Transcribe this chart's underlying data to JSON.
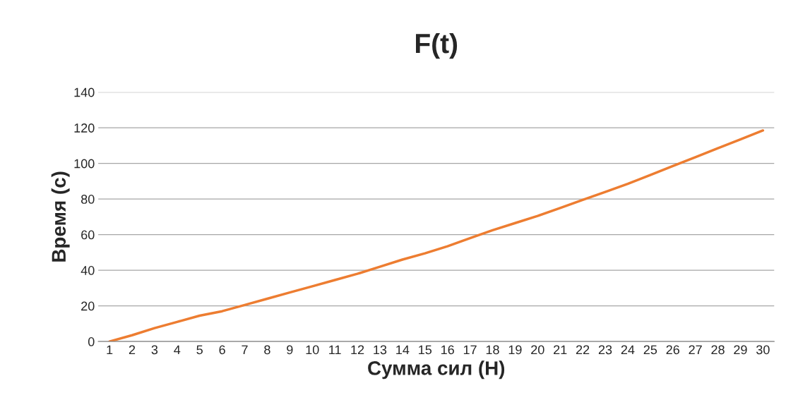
{
  "chart_data": {
    "type": "line",
    "title": "F(t)",
    "xlabel": "Сумма сил (Н)",
    "ylabel": "Время (с)",
    "categories": [
      "1",
      "2",
      "3",
      "4",
      "5",
      "6",
      "7",
      "8",
      "9",
      "10",
      "11",
      "12",
      "13",
      "14",
      "15",
      "16",
      "17",
      "18",
      "19",
      "20",
      "21",
      "22",
      "23",
      "24",
      "25",
      "26",
      "27",
      "28",
      "29",
      "30"
    ],
    "series": [
      {
        "color": "#ed7d31",
        "values": [
          0,
          3.5,
          7.5,
          11,
          14.5,
          17,
          20.5,
          24,
          27.5,
          31,
          34.5,
          38,
          42,
          46,
          49.5,
          53.5,
          58,
          62.5,
          66.5,
          70.5,
          75,
          79.5,
          84,
          88.5,
          93.5,
          98.5,
          103.5,
          108.5,
          113.5,
          118.5
        ]
      }
    ],
    "ylim": [
      0,
      140
    ],
    "yticks": [
      0,
      20,
      40,
      60,
      80,
      100,
      120,
      140
    ],
    "grid": "y",
    "marker": "none",
    "line_style": "solid"
  }
}
